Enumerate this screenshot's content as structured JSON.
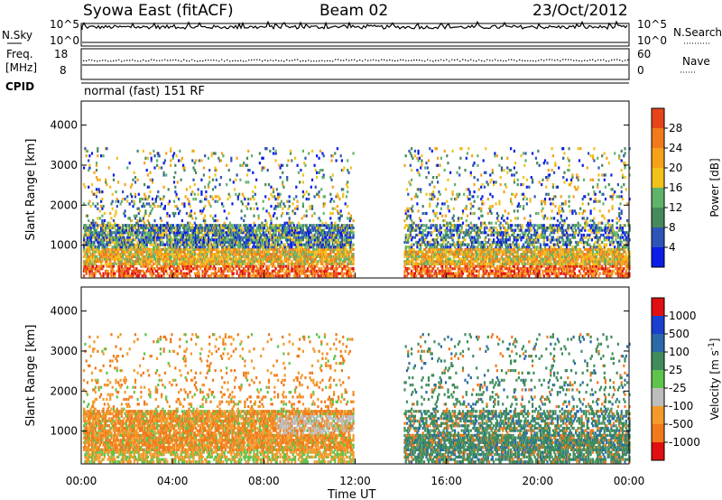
{
  "header": {
    "station": "Syowa East (fitACF)",
    "beam": "Beam 02",
    "date": "23/Oct/2012"
  },
  "noise_panel": {
    "left_label": "N.Sky",
    "right_label": "N.Search",
    "tick_top_left": "10^5",
    "tick_bottom_left": "10^0",
    "tick_top_right": "10^5",
    "tick_bottom_right": "10^0"
  },
  "freq_panel": {
    "left_label_1": "Freq.",
    "left_label_2": "[MHz]",
    "right_label": "Nave",
    "tick_top_left": "18",
    "tick_bottom_left": "8",
    "tick_top_right": "60",
    "tick_bottom_right": "0"
  },
  "cpid_panel": {
    "label": "CPID",
    "value": "normal (fast) 151 RF"
  },
  "colors": {
    "power": [
      "#0a1ee6",
      "#2c55b8",
      "#46895a",
      "#5fb36b",
      "#f2c21b",
      "#f6a11a",
      "#f07a1c",
      "#e8441a",
      "#e01010"
    ],
    "velocity": [
      "#e11010",
      "#f07a1c",
      "#f39a2a",
      "#bdbdbd",
      "#5fc44d",
      "#3f8d5c",
      "#2a6aa8",
      "#1b3fcf"
    ]
  },
  "chart_data": [
    {
      "type": "heatmap",
      "parameter": "Power",
      "ylabel": "Slant Range [km]",
      "ylim": [
        180,
        4600
      ],
      "yticks": [
        "1000",
        "2000",
        "3000",
        "4000"
      ],
      "colorbar_label": "Power [dB]",
      "colorbar_ticks": [
        "4",
        "8",
        "12",
        "16",
        "20",
        "24",
        "28"
      ],
      "colorbar_range": [
        0,
        32
      ],
      "gap_hours": [
        11.9,
        14.1
      ],
      "regions": [
        {
          "t": [
            0.1,
            11.5
          ],
          "range": [
            200,
            400
          ],
          "dominant": "orange-red"
        },
        {
          "t": [
            0.1,
            11.5
          ],
          "range": [
            600,
            900
          ],
          "dominant": "orange-yellow"
        },
        {
          "t": [
            0.1,
            11.5
          ],
          "range": [
            900,
            1500
          ],
          "dominant": "green-blue"
        },
        {
          "t": [
            14.5,
            24
          ],
          "range": [
            200,
            450
          ],
          "dominant": "orange-red"
        },
        {
          "t": [
            14.5,
            24
          ],
          "range": [
            700,
            1500
          ],
          "dominant": "green-blue"
        }
      ]
    },
    {
      "type": "heatmap",
      "parameter": "Velocity",
      "ylabel": "Slant Range [km]",
      "ylim": [
        180,
        4600
      ],
      "yticks": [
        "1000",
        "2000",
        "3000",
        "4000"
      ],
      "colorbar_label": "Velocity [m s-1]",
      "colorbar_ticks": [
        "-1000",
        "-500",
        "-100",
        "-25",
        "25",
        "100",
        "500",
        "1000"
      ],
      "colorbar_range": [
        -1250,
        1250
      ],
      "regions": [
        {
          "t": [
            0.1,
            11.5
          ],
          "range": [
            500,
            1450
          ],
          "dominant": "orange"
        },
        {
          "t": [
            8.5,
            11.5
          ],
          "range": [
            900,
            1400
          ],
          "dominant": "grey"
        },
        {
          "t": [
            14.5,
            24
          ],
          "range": [
            700,
            1500
          ],
          "dominant": "green"
        }
      ]
    }
  ],
  "time_axis": {
    "xlabel": "Time UT",
    "range_hours": [
      0,
      24
    ],
    "ticks": [
      "00:00",
      "04:00",
      "08:00",
      "12:00",
      "16:00",
      "20:00",
      "00:00"
    ]
  }
}
